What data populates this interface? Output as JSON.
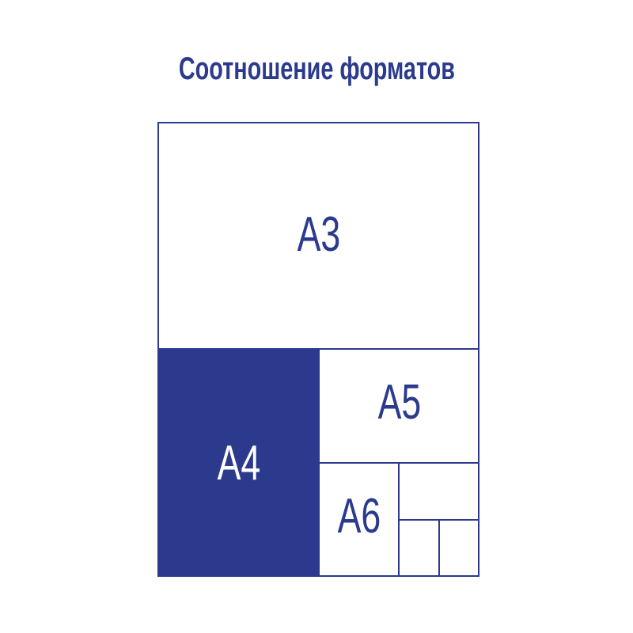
{
  "title": "Соотношение форматов",
  "colors": {
    "accent": "#2b3a8c",
    "background": "#ffffff"
  },
  "formats": {
    "a3": "A3",
    "a4": "A4",
    "a5": "A5",
    "a6": "A6"
  },
  "highlighted_format": "A4"
}
